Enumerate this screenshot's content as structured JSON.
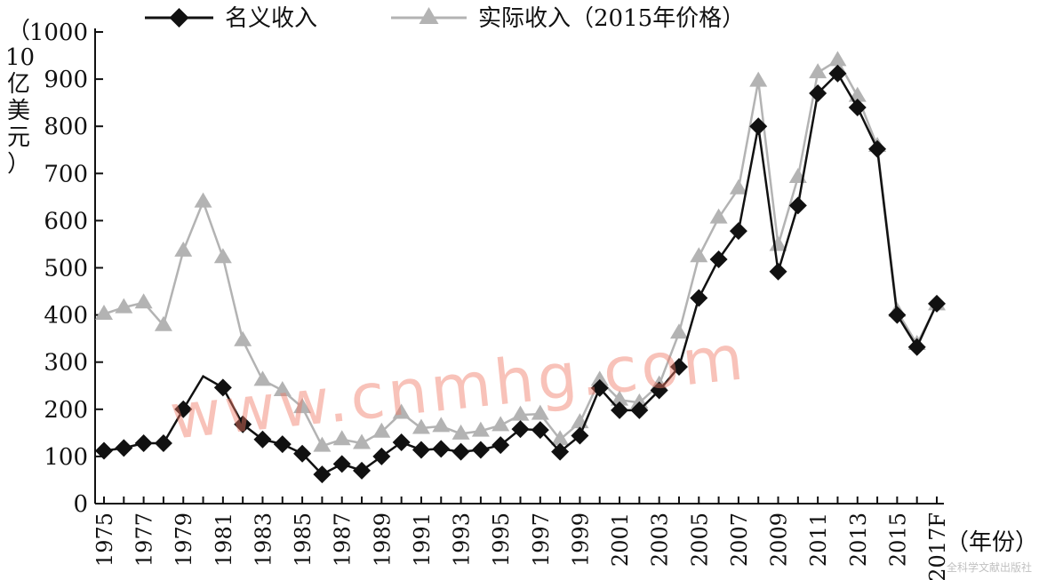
{
  "chart_data": {
    "type": "line",
    "title": "",
    "xlabel": "（年份）",
    "ylabel": "（10亿美元）",
    "ylim": [
      0,
      1000
    ],
    "yticks": [
      0,
      100,
      200,
      300,
      400,
      500,
      600,
      700,
      800,
      900,
      1000
    ],
    "x_tick_labels": [
      "1975",
      "1977",
      "1979",
      "1981",
      "1983",
      "1985",
      "1987",
      "1989",
      "1991",
      "1993",
      "1995",
      "1997",
      "1999",
      "2001",
      "2003",
      "2005",
      "2007",
      "2009",
      "2011",
      "2013",
      "2015",
      "2017F"
    ],
    "categories": [
      "1975",
      "1976",
      "1977",
      "1978",
      "1979",
      "1980",
      "1981",
      "1982",
      "1983",
      "1984",
      "1985",
      "1986",
      "1987",
      "1988",
      "1989",
      "1990",
      "1991",
      "1992",
      "1993",
      "1994",
      "1995",
      "1996",
      "1997",
      "1998",
      "1999",
      "2000",
      "2001",
      "2002",
      "2003",
      "2004",
      "2005",
      "2006",
      "2007",
      "2008",
      "2009",
      "2010",
      "2011",
      "2012",
      "2013",
      "2014",
      "2015",
      "2016",
      "2017F"
    ],
    "legend_placement": "top",
    "series": [
      {
        "name": "名义收入",
        "color": "#111111",
        "marker": "diamond",
        "values": [
          112,
          118,
          128,
          128,
          200,
          270,
          246,
          168,
          136,
          126,
          106,
          62,
          84,
          70,
          100,
          130,
          114,
          116,
          110,
          114,
          124,
          158,
          156,
          110,
          144,
          245,
          198,
          198,
          240,
          290,
          436,
          518,
          578,
          800,
          492,
          632,
          870,
          912,
          840,
          752,
          400,
          332,
          424
        ],
        "marker_skip": [
          5
        ]
      },
      {
        "name": "实际收入（2015年价格）",
        "color": "#b3b3b3",
        "marker": "triangle",
        "values": [
          402,
          416,
          426,
          378,
          536,
          640,
          522,
          346,
          262,
          240,
          204,
          122,
          136,
          128,
          152,
          192,
          160,
          164,
          148,
          154,
          166,
          188,
          190,
          136,
          172,
          262,
          220,
          214,
          252,
          362,
          524,
          606,
          668,
          896,
          548,
          692,
          914,
          940,
          864,
          758,
          408,
          338,
          422
        ],
        "marker_skip": []
      }
    ]
  },
  "watermark": "www.cnmhg.com",
  "publisher_mark": "全科学文献出版社"
}
